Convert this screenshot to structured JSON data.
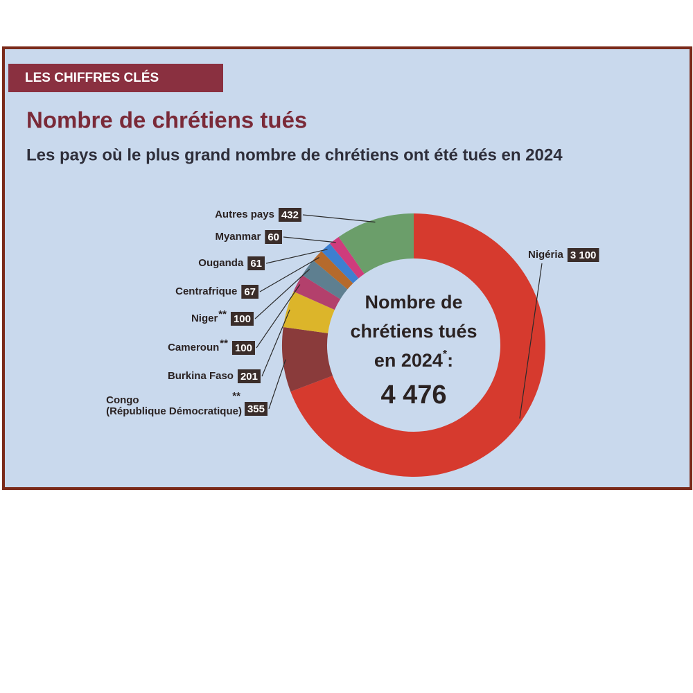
{
  "header": "LES CHIFFRES CLÉS",
  "chart_data": {
    "type": "donut",
    "title": "Nombre de chrétiens tués",
    "subtitle": "Les pays où le plus grand nombre de chrétiens ont été tués en 2024",
    "categories": [
      "Nigéria",
      "Congo",
      "Burkina Faso",
      "Cameroun",
      "Niger",
      "Centrafrique",
      "Ouganda",
      "Myanmar",
      "Autres pays"
    ],
    "category_notes": [
      null,
      "**",
      null,
      "**",
      "**",
      null,
      null,
      null,
      null
    ],
    "category_sublabels": [
      null,
      "(République Démocratique)",
      null,
      null,
      null,
      null,
      null,
      null,
      null
    ],
    "values": [
      3100,
      355,
      201,
      100,
      100,
      67,
      61,
      60,
      432
    ],
    "value_labels": [
      "3 100",
      null,
      null,
      null,
      null,
      null,
      null,
      null,
      null
    ],
    "colors": [
      "#d63a2e",
      "#8a3b3b",
      "#dcb52a",
      "#b3406c",
      "#5e7f90",
      "#b56a2c",
      "#3d7fd0",
      "#cf3c7c",
      "#6b9e6a"
    ],
    "center_lines": [
      "Nombre de",
      "chrétiens tués",
      "en 2024"
    ],
    "center_note": "*",
    "center_suffix": ":",
    "total": {
      "value": 4476,
      "label": "4 476"
    }
  }
}
